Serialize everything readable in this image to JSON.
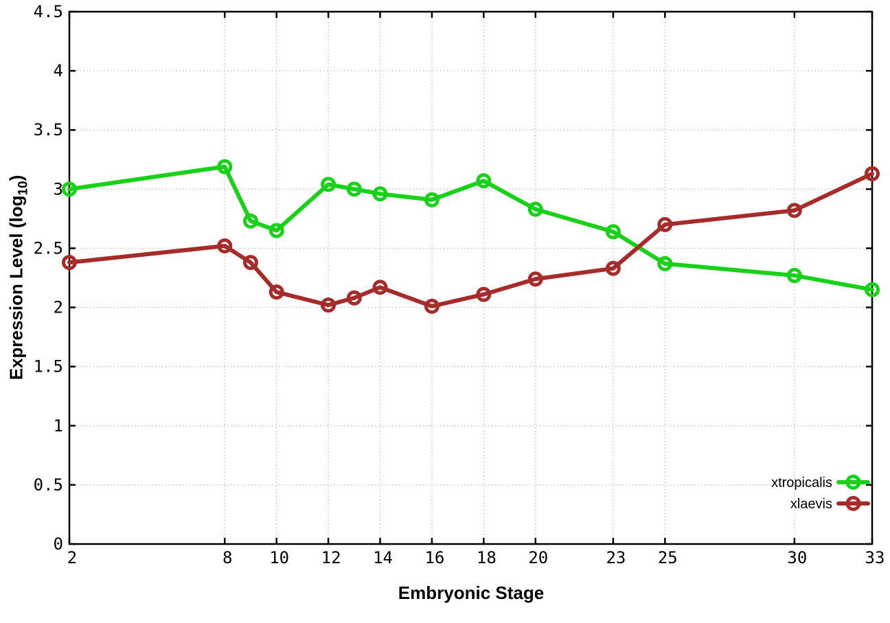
{
  "chart_data": {
    "type": "line",
    "title": "",
    "xlabel": "Embryonic Stage",
    "ylabel": "Expression Level (log10)",
    "ylabel_parts": {
      "pre": "Expression Level (log",
      "sub": "10",
      "post": ")"
    },
    "xlim": [
      2,
      33
    ],
    "ylim": [
      0,
      4.5
    ],
    "x_ticks": [
      2,
      8,
      10,
      12,
      14,
      16,
      18,
      20,
      23,
      25,
      30,
      33
    ],
    "y_ticks": [
      0,
      0.5,
      1,
      1.5,
      2,
      2.5,
      3,
      3.5,
      4,
      4.5
    ],
    "grid": true,
    "legend_position": "bottom-right",
    "x": [
      2,
      8,
      9,
      10,
      12,
      13,
      14,
      16,
      18,
      20,
      23,
      25,
      30,
      33
    ],
    "series": [
      {
        "name": "xtropicalis",
        "color": "#18d118",
        "marker": "open-circle",
        "values": [
          3.0,
          3.19,
          2.73,
          2.65,
          3.04,
          3.0,
          2.96,
          2.91,
          3.07,
          2.83,
          2.64,
          2.37,
          2.27,
          2.15
        ]
      },
      {
        "name": "xlaevis",
        "color": "#a62b2b",
        "marker": "open-circle",
        "values": [
          2.38,
          2.52,
          2.38,
          2.13,
          2.02,
          2.08,
          2.17,
          2.01,
          2.11,
          2.24,
          2.33,
          2.7,
          2.82,
          3.13
        ]
      }
    ]
  },
  "style": {
    "background": "#ffffff",
    "axis_color": "#000000",
    "grid_color": "#c4c4c4",
    "tick_label_color": "#000000",
    "legend_text_color": "#000000"
  }
}
